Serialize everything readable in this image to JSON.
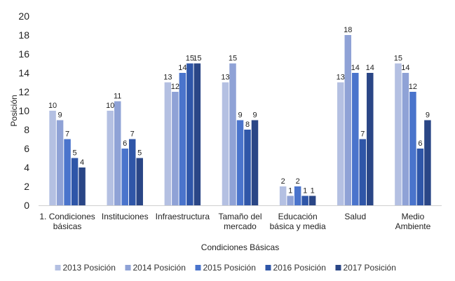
{
  "chart_data": {
    "type": "bar",
    "ylabel": "Posición",
    "xlabel": "Condiciones Básicas",
    "ylim": [
      0,
      20
    ],
    "yticks": [
      0,
      2,
      4,
      6,
      8,
      10,
      12,
      14,
      16,
      18,
      20
    ],
    "grid": false,
    "legend_position": "bottom",
    "categories": [
      [
        "1. Condiciones",
        "básicas"
      ],
      [
        "Instituciones"
      ],
      [
        "Infraestructura"
      ],
      [
        "Tamaño del",
        "mercado"
      ],
      [
        "Educación",
        "básica y media"
      ],
      [
        "Salud"
      ],
      [
        "Medio",
        "Ambiente"
      ]
    ],
    "series": [
      {
        "name": "2013 Posición",
        "color": "#b4c0e2",
        "values": [
          10,
          10,
          13,
          13,
          2,
          13,
          15
        ]
      },
      {
        "name": "2014 Posición",
        "color": "#8fa2d6",
        "values": [
          9,
          11,
          12,
          15,
          1,
          18,
          14
        ]
      },
      {
        "name": "2015 Posición",
        "color": "#4a74cc",
        "values": [
          7,
          6,
          14,
          9,
          2,
          14,
          12
        ]
      },
      {
        "name": "2016 Posición",
        "color": "#2f56a8",
        "values": [
          5,
          7,
          15,
          8,
          1,
          7,
          6
        ]
      },
      {
        "name": "2017 Posición",
        "color": "#2a4686",
        "values": [
          4,
          5,
          15,
          9,
          1,
          14,
          9
        ]
      }
    ]
  }
}
